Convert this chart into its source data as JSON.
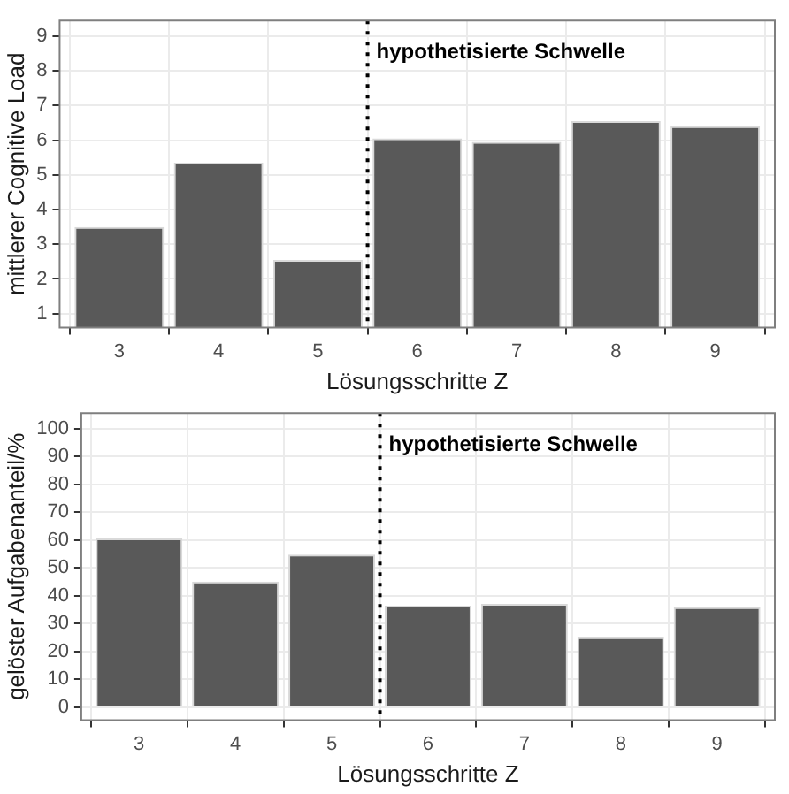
{
  "chart_data": [
    {
      "type": "bar",
      "x": [
        3,
        4,
        5,
        6,
        7,
        8,
        9
      ],
      "xlim": [
        2.4,
        9.6
      ],
      "xticks": [
        3,
        4,
        5,
        6,
        7,
        8,
        9
      ],
      "values": [
        3.5,
        5.35,
        2.55,
        6.05,
        5.95,
        6.55,
        6.4
      ],
      "color": "#595959",
      "ylim": [
        0.6,
        9.45
      ],
      "yticks": [
        1,
        2,
        3,
        4,
        5,
        6,
        7,
        8,
        9
      ],
      "xlabel": "Lösungsschritte Z",
      "ylabel": "mittlerer Cognitive Load",
      "grid": true,
      "legend": false,
      "ref_lines": [
        {
          "axis": "x",
          "value": 5.5,
          "label": "hypothetisierte Schwelle",
          "color": "#000000",
          "line_style": "dotted"
        }
      ]
    },
    {
      "type": "bar",
      "x": [
        3,
        4,
        5,
        6,
        7,
        8,
        9
      ],
      "xlim": [
        2.4,
        9.6
      ],
      "xticks": [
        3,
        4,
        5,
        6,
        7,
        8,
        9
      ],
      "values": [
        60.5,
        45,
        54.7,
        36.4,
        37,
        25,
        35.8
      ],
      "color": "#595959",
      "ylim": [
        -4.7,
        105.5
      ],
      "yticks": [
        0,
        10,
        20,
        30,
        40,
        50,
        60,
        70,
        80,
        90,
        100
      ],
      "xlabel": "Lösungsschritte Z",
      "ylabel": "gelöster Aufgabenanteil/%",
      "grid": true,
      "legend": false,
      "ref_lines": [
        {
          "axis": "x",
          "value": 5.5,
          "label": "hypothetisierte Schwelle",
          "color": "#000000",
          "line_style": "dotted"
        }
      ]
    }
  ]
}
